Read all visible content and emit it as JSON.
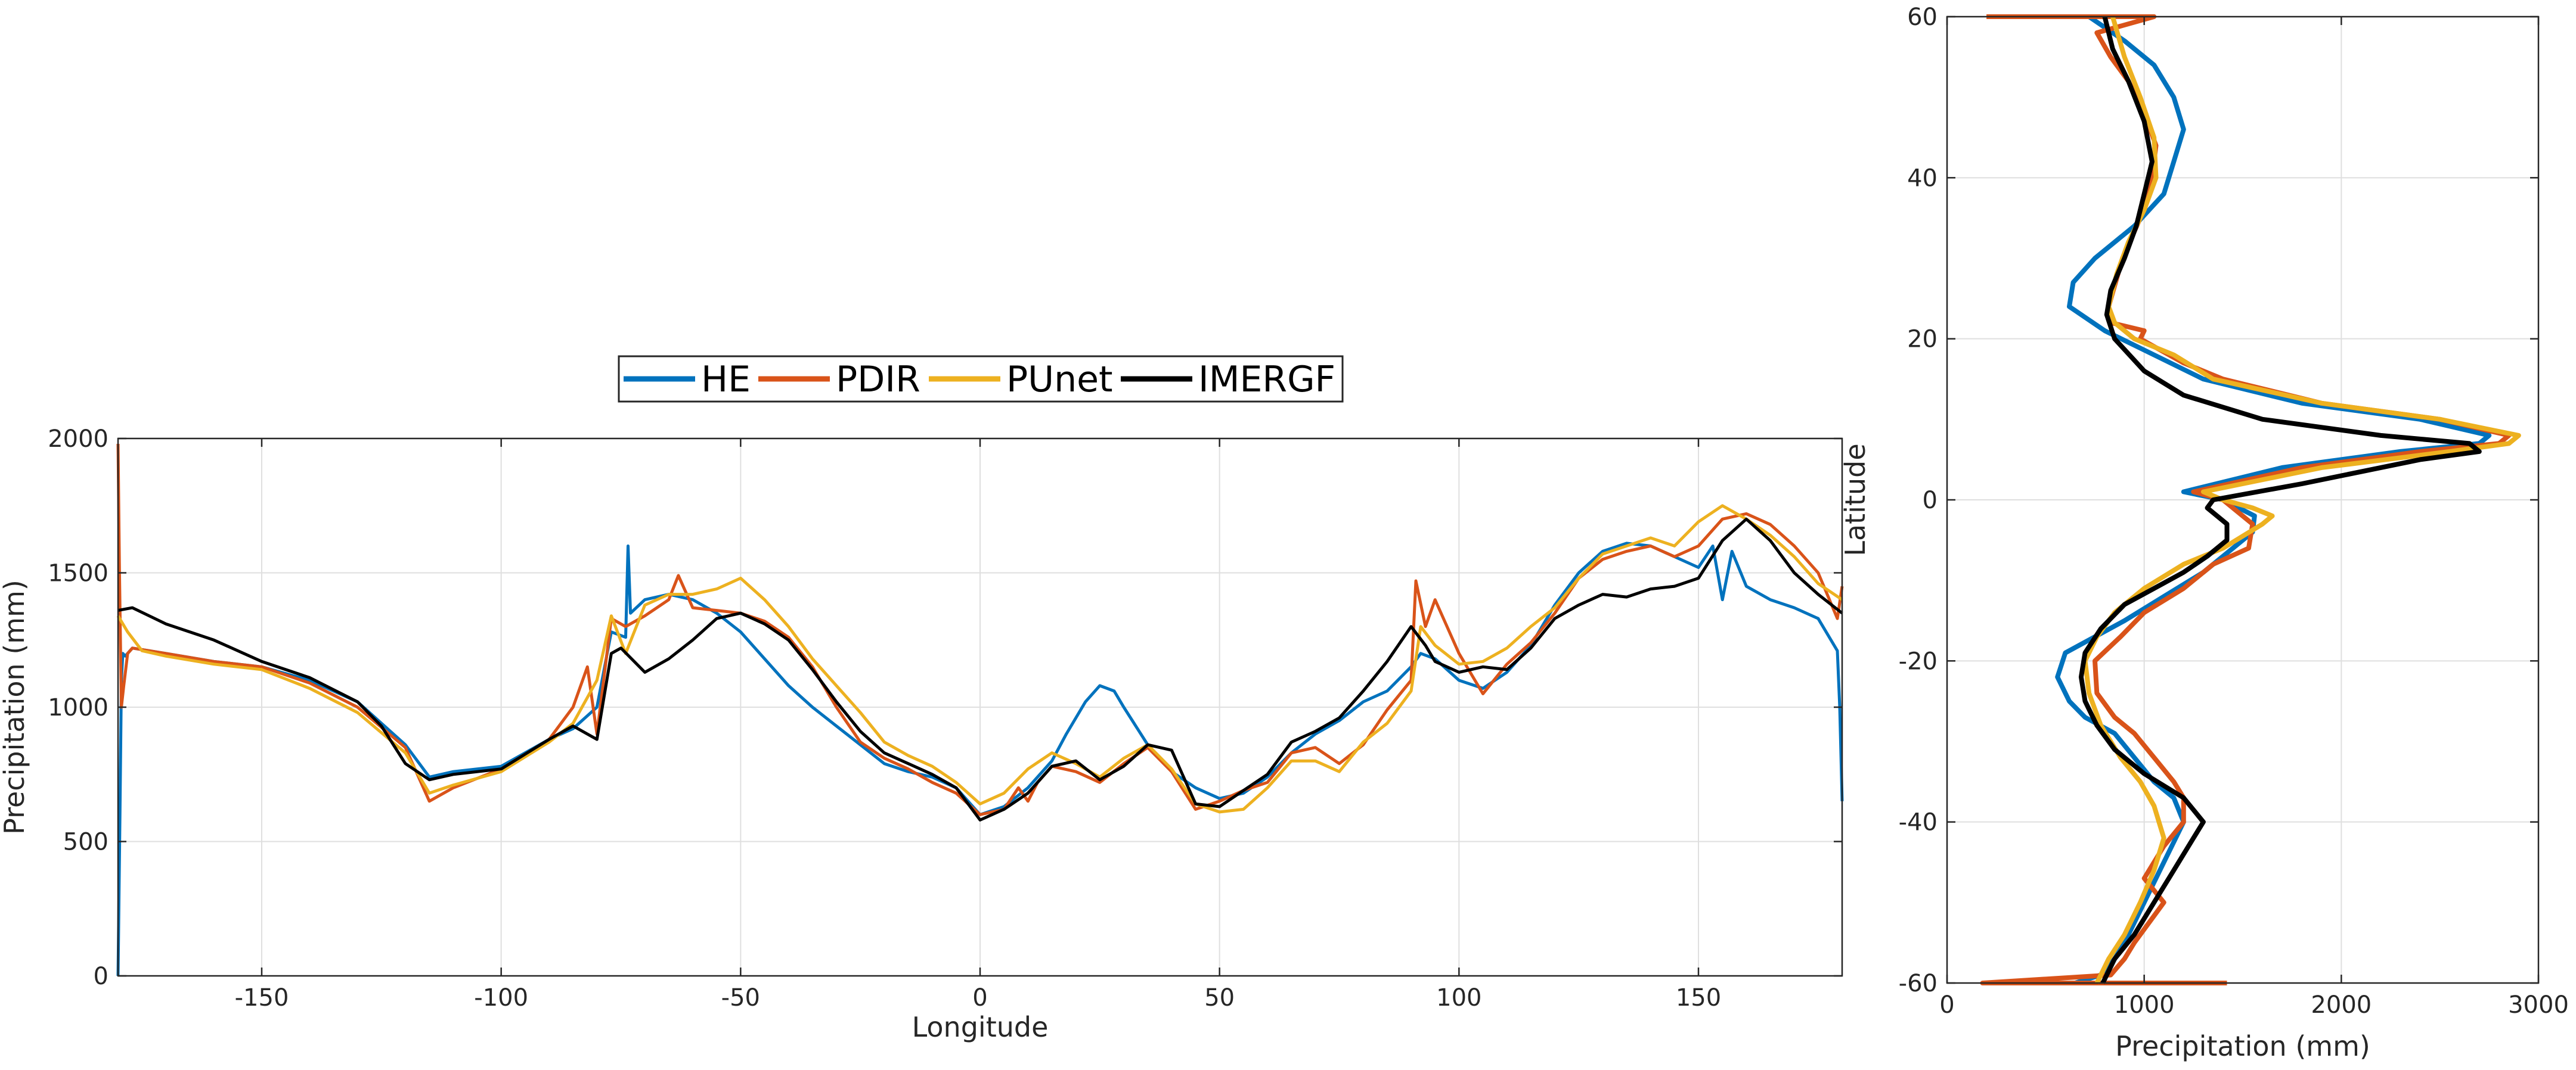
{
  "colors": {
    "HE": "#0072bd",
    "PDIR": "#d95319",
    "PUnet": "#edb120",
    "IMERGF": "#000000"
  },
  "legend": {
    "entries": [
      "HE",
      "PDIR",
      "PUnet",
      "IMERGF"
    ],
    "placement": "top-center"
  },
  "chart_data": [
    {
      "type": "line",
      "xlabel": "Longitude",
      "ylabel": "Precipitation (mm)",
      "xlim": [
        -180,
        180
      ],
      "ylim": [
        0,
        2000
      ],
      "xticks": [
        -150,
        -100,
        -50,
        0,
        50,
        100,
        150
      ],
      "yticks": [
        0,
        500,
        1000,
        1500,
        2000
      ],
      "grid": true,
      "series": [
        {
          "name": "HE",
          "x": [
            -180,
            -179.6,
            -179.3,
            -179,
            -178.5,
            -177,
            -170,
            -160,
            -150,
            -140,
            -130,
            -120,
            -115,
            -110,
            -100,
            -90,
            -85,
            -80,
            -77,
            -74,
            -73.5,
            -73,
            -70,
            -65,
            -60,
            -55,
            -50,
            -45,
            -40,
            -35,
            -30,
            -25,
            -20,
            -15,
            -10,
            -5,
            -2,
            0,
            5,
            10,
            15,
            18,
            22,
            25,
            28,
            30,
            35,
            40,
            45,
            50,
            55,
            60,
            65,
            70,
            75,
            80,
            85,
            90,
            92,
            95,
            100,
            105,
            110,
            115,
            120,
            125,
            130,
            135,
            140,
            145,
            150,
            153,
            155,
            157,
            160,
            165,
            170,
            175,
            179,
            179.5,
            180
          ],
          "y": [
            0,
            600,
            1100,
            1200,
            1190,
            1220,
            1200,
            1170,
            1150,
            1100,
            1020,
            860,
            740,
            760,
            780,
            880,
            920,
            1000,
            1280,
            1260,
            1600,
            1350,
            1400,
            1420,
            1400,
            1350,
            1280,
            1180,
            1080,
            1000,
            930,
            860,
            790,
            760,
            740,
            700,
            640,
            600,
            630,
            700,
            800,
            900,
            1020,
            1080,
            1060,
            1000,
            860,
            760,
            700,
            660,
            680,
            740,
            830,
            900,
            950,
            1020,
            1060,
            1150,
            1200,
            1180,
            1100,
            1070,
            1130,
            1230,
            1380,
            1500,
            1580,
            1610,
            1600,
            1560,
            1520,
            1600,
            1400,
            1580,
            1450,
            1400,
            1370,
            1330,
            1210,
            1000,
            650
          ]
        },
        {
          "name": "PDIR",
          "x": [
            -180,
            -179.7,
            -179.3,
            -178.8,
            -178,
            -177,
            -170,
            -160,
            -150,
            -140,
            -130,
            -120,
            -115,
            -110,
            -100,
            -90,
            -85,
            -82,
            -80,
            -77,
            -74,
            -70,
            -65,
            -63,
            -60,
            -55,
            -50,
            -45,
            -40,
            -35,
            -30,
            -25,
            -20,
            -15,
            -10,
            -5,
            0,
            5,
            8,
            10,
            12,
            15,
            20,
            25,
            30,
            35,
            40,
            45,
            50,
            55,
            60,
            65,
            70,
            75,
            80,
            85,
            90,
            91,
            93,
            95,
            100,
            105,
            110,
            115,
            120,
            125,
            130,
            135,
            140,
            145,
            150,
            155,
            160,
            165,
            170,
            175,
            179,
            180
          ],
          "y": [
            1980,
            1500,
            1000,
            1080,
            1200,
            1220,
            1200,
            1170,
            1150,
            1090,
            1000,
            850,
            650,
            700,
            770,
            880,
            1000,
            1150,
            900,
            1330,
            1300,
            1340,
            1400,
            1490,
            1370,
            1360,
            1350,
            1320,
            1260,
            1150,
            1000,
            870,
            810,
            770,
            720,
            680,
            600,
            620,
            700,
            650,
            720,
            780,
            760,
            720,
            790,
            850,
            760,
            620,
            650,
            690,
            720,
            830,
            850,
            790,
            860,
            990,
            1100,
            1470,
            1300,
            1400,
            1200,
            1050,
            1160,
            1240,
            1350,
            1480,
            1550,
            1580,
            1600,
            1560,
            1600,
            1700,
            1720,
            1680,
            1600,
            1500,
            1330,
            1450
          ]
        },
        {
          "name": "PUnet",
          "x": [
            -180,
            -178,
            -175,
            -170,
            -160,
            -150,
            -140,
            -130,
            -120,
            -115,
            -110,
            -100,
            -90,
            -85,
            -80,
            -77,
            -74,
            -70,
            -65,
            -60,
            -55,
            -50,
            -45,
            -40,
            -35,
            -30,
            -25,
            -20,
            -15,
            -10,
            -5,
            0,
            5,
            10,
            15,
            20,
            25,
            30,
            35,
            40,
            45,
            50,
            55,
            60,
            65,
            70,
            75,
            80,
            85,
            90,
            92,
            95,
            100,
            105,
            110,
            115,
            120,
            125,
            130,
            135,
            140,
            145,
            150,
            155,
            160,
            165,
            170,
            175,
            180
          ],
          "y": [
            1340,
            1280,
            1210,
            1190,
            1160,
            1140,
            1070,
            980,
            830,
            680,
            710,
            760,
            870,
            940,
            1100,
            1340,
            1200,
            1380,
            1420,
            1420,
            1440,
            1480,
            1400,
            1300,
            1180,
            1080,
            980,
            870,
            820,
            780,
            720,
            640,
            680,
            770,
            830,
            790,
            740,
            810,
            860,
            770,
            640,
            610,
            620,
            700,
            800,
            800,
            760,
            870,
            940,
            1060,
            1300,
            1230,
            1160,
            1170,
            1220,
            1300,
            1370,
            1480,
            1570,
            1600,
            1630,
            1600,
            1690,
            1750,
            1700,
            1640,
            1560,
            1460,
            1400
          ]
        },
        {
          "name": "IMERGF",
          "x": [
            -180,
            -177,
            -170,
            -160,
            -150,
            -140,
            -130,
            -125,
            -120,
            -115,
            -110,
            -100,
            -90,
            -85,
            -80,
            -77,
            -75,
            -70,
            -65,
            -60,
            -55,
            -50,
            -45,
            -40,
            -35,
            -30,
            -25,
            -20,
            -15,
            -10,
            -5,
            0,
            5,
            10,
            15,
            20,
            25,
            30,
            35,
            40,
            45,
            50,
            55,
            60,
            65,
            70,
            75,
            80,
            85,
            90,
            93,
            95,
            100,
            105,
            110,
            115,
            120,
            125,
            130,
            135,
            140,
            145,
            150,
            155,
            160,
            165,
            170,
            175,
            180
          ],
          "y": [
            1360,
            1370,
            1310,
            1250,
            1170,
            1110,
            1020,
            930,
            790,
            730,
            750,
            770,
            880,
            930,
            880,
            1200,
            1220,
            1130,
            1180,
            1250,
            1330,
            1350,
            1310,
            1250,
            1140,
            1020,
            910,
            830,
            790,
            750,
            700,
            580,
            620,
            680,
            780,
            800,
            730,
            780,
            860,
            840,
            640,
            630,
            690,
            750,
            870,
            910,
            960,
            1060,
            1170,
            1300,
            1230,
            1170,
            1130,
            1150,
            1140,
            1220,
            1330,
            1380,
            1420,
            1410,
            1440,
            1450,
            1480,
            1620,
            1700,
            1620,
            1500,
            1420,
            1350
          ]
        }
      ]
    },
    {
      "type": "line",
      "xlabel": "Precipitation (mm)",
      "ylabel": "Latitude",
      "xlim": [
        0,
        3000
      ],
      "ylim": [
        -60,
        60
      ],
      "xticks": [
        0,
        1000,
        2000,
        3000
      ],
      "yticks": [
        -60,
        -40,
        -20,
        0,
        20,
        40,
        60
      ],
      "grid": true,
      "series": [
        {
          "name": "HE",
          "x": [
            650,
            780,
            850,
            900,
            1000,
            1100,
            1200,
            1150,
            1050,
            950,
            850,
            700,
            620,
            560,
            600,
            750,
            900,
            1100,
            1300,
            1450,
            1550,
            1560,
            1400,
            1200,
            1700,
            2300,
            2700,
            2750,
            2400,
            1800,
            1300,
            1050,
            800,
            620,
            640,
            750,
            950,
            1100,
            1150,
            1200,
            1150,
            1050,
            900,
            720
          ],
          "y": [
            -60,
            -59,
            -57,
            -55,
            -50,
            -45,
            -40,
            -37,
            -35,
            -32,
            -29,
            -27,
            -25,
            -22,
            -19,
            -17,
            -15,
            -12,
            -9,
            -6,
            -4,
            -2,
            0,
            1,
            4,
            6,
            7,
            8,
            10,
            12,
            15,
            18,
            21,
            24,
            27,
            30,
            34,
            38,
            42,
            46,
            50,
            54,
            57,
            60
          ]
        },
        {
          "name": "PDIR",
          "x": [
            1420,
            180,
            830,
            900,
            950,
            1100,
            1000,
            1100,
            1200,
            1200,
            1150,
            1050,
            950,
            850,
            760,
            750,
            880,
            1000,
            1200,
            1350,
            1530,
            1550,
            1400,
            1250,
            1800,
            2400,
            2800,
            2850,
            2500,
            1900,
            1400,
            1200,
            980,
            1000,
            830,
            820,
            890,
            980,
            1040,
            1060,
            1000,
            920,
            830,
            760,
            1050,
            200
          ],
          "y": [
            -60,
            -60,
            -59,
            -57,
            -55,
            -50,
            -47,
            -43,
            -40,
            -37,
            -35,
            -32,
            -29,
            -27,
            -24,
            -20,
            -17,
            -14,
            -11,
            -8,
            -6,
            -3,
            0,
            1,
            4,
            6,
            7,
            8,
            10,
            12,
            15,
            17,
            20,
            21,
            22,
            24,
            30,
            35,
            40,
            44,
            48,
            52,
            55,
            58,
            60,
            60
          ]
        },
        {
          "name": "PUnet",
          "x": [
            760,
            820,
            900,
            980,
            1050,
            1100,
            1050,
            980,
            880,
            780,
            720,
            700,
            760,
            850,
            1000,
            1200,
            1400,
            1600,
            1650,
            1550,
            1400,
            1300,
            1900,
            2550,
            2850,
            2900,
            2500,
            1900,
            1350,
            1150,
            950,
            850,
            820,
            860,
            920,
            1000,
            1060,
            1050,
            980,
            900,
            840
          ],
          "y": [
            -60,
            -57,
            -54,
            -50,
            -46,
            -42,
            -38,
            -35,
            -32,
            -28,
            -24,
            -20,
            -17,
            -14,
            -11,
            -8,
            -6,
            -3,
            -2,
            -1,
            0,
            1,
            4,
            6,
            7,
            8,
            10,
            12,
            15,
            18,
            20,
            22,
            24,
            28,
            32,
            36,
            40,
            45,
            50,
            55,
            60
          ]
        },
        {
          "name": "IMERGF",
          "x": [
            790,
            850,
            950,
            1050,
            1150,
            1250,
            1300,
            1200,
            1000,
            850,
            760,
            700,
            680,
            700,
            780,
            900,
            1050,
            1200,
            1320,
            1420,
            1420,
            1320,
            1350,
            1800,
            2400,
            2700,
            2650,
            2200,
            1600,
            1200,
            1000,
            850,
            810,
            830,
            900,
            960,
            1000,
            1040,
            1000,
            920,
            840,
            800
          ],
          "y": [
            -60,
            -57,
            -54,
            -50,
            -46,
            -42,
            -40,
            -37,
            -34,
            -31,
            -28,
            -25,
            -22,
            -19,
            -16,
            -13,
            -11,
            -9,
            -7,
            -5,
            -3,
            -1,
            0,
            2,
            5,
            6,
            7,
            8,
            10,
            13,
            16,
            20,
            23,
            26,
            30,
            34,
            38,
            42,
            47,
            52,
            56,
            60
          ]
        }
      ]
    }
  ]
}
